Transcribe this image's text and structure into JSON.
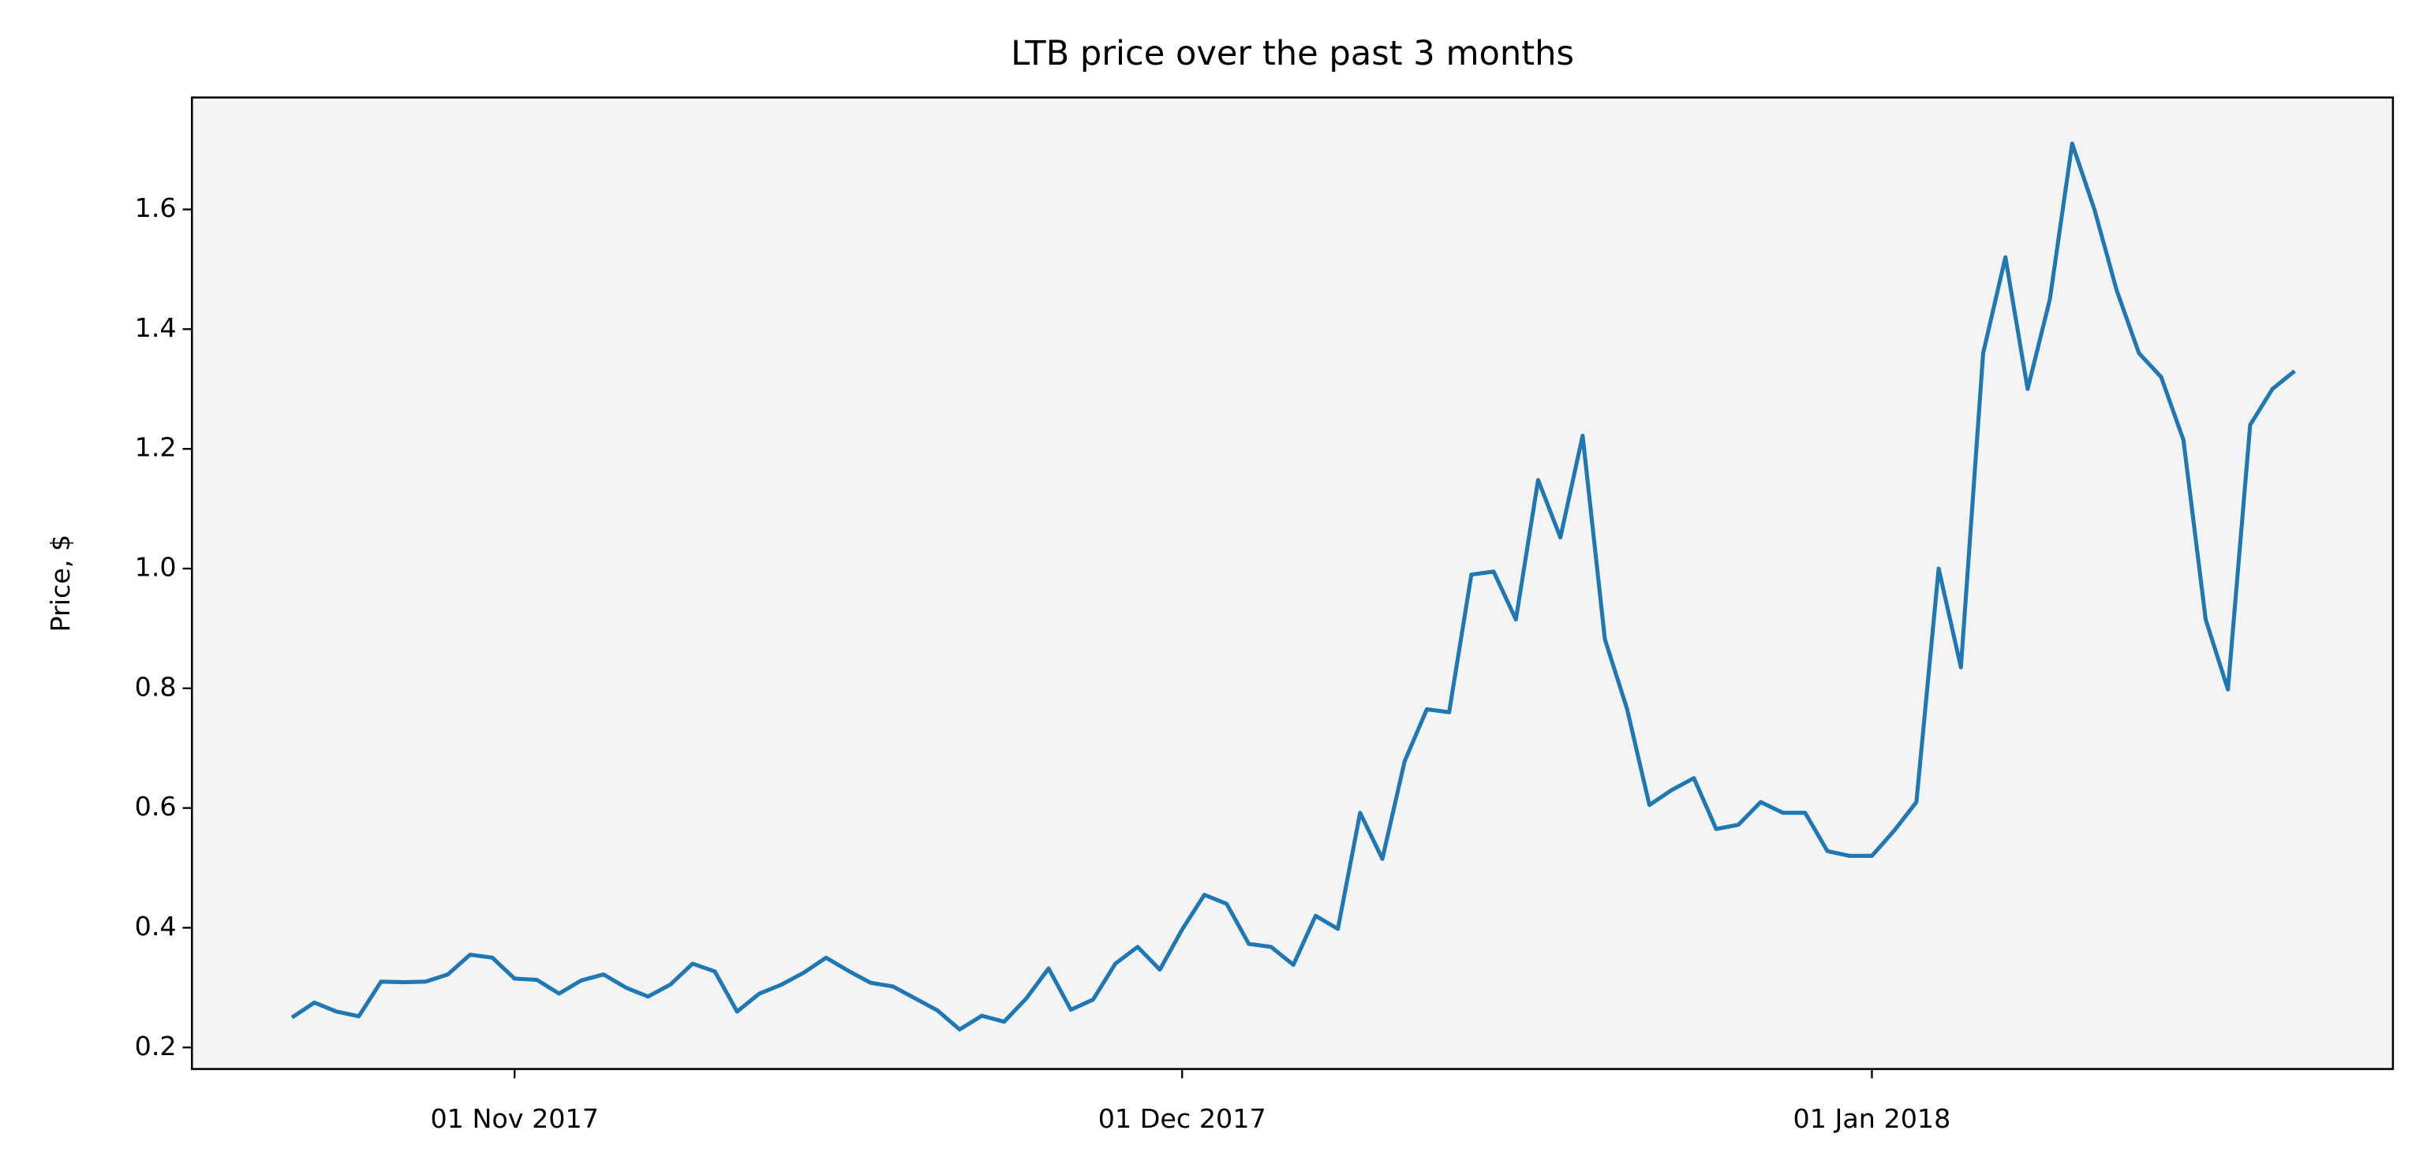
{
  "chart_data": {
    "type": "line",
    "title": "LTB price over the past 3 months",
    "y_label": "Price, $",
    "x": [
      "2017-10-22",
      "2017-10-23",
      "2017-10-24",
      "2017-10-25",
      "2017-10-26",
      "2017-10-27",
      "2017-10-28",
      "2017-10-29",
      "2017-10-30",
      "2017-10-31",
      "2017-11-01",
      "2017-11-02",
      "2017-11-03",
      "2017-11-04",
      "2017-11-05",
      "2017-11-06",
      "2017-11-07",
      "2017-11-08",
      "2017-11-09",
      "2017-11-10",
      "2017-11-11",
      "2017-11-12",
      "2017-11-13",
      "2017-11-14",
      "2017-11-15",
      "2017-11-16",
      "2017-11-17",
      "2017-11-18",
      "2017-11-19",
      "2017-11-20",
      "2017-11-21",
      "2017-11-22",
      "2017-11-23",
      "2017-11-24",
      "2017-11-25",
      "2017-11-26",
      "2017-11-27",
      "2017-11-28",
      "2017-11-29",
      "2017-11-30",
      "2017-12-01",
      "2017-12-02",
      "2017-12-03",
      "2017-12-04",
      "2017-12-05",
      "2017-12-06",
      "2017-12-07",
      "2017-12-08",
      "2017-12-09",
      "2017-12-10",
      "2017-12-11",
      "2017-12-12",
      "2017-12-13",
      "2017-12-14",
      "2017-12-15",
      "2017-12-16",
      "2017-12-17",
      "2017-12-18",
      "2017-12-19",
      "2017-12-20",
      "2017-12-21",
      "2017-12-22",
      "2017-12-23",
      "2017-12-24",
      "2017-12-25",
      "2017-12-26",
      "2017-12-27",
      "2017-12-28",
      "2017-12-29",
      "2017-12-30",
      "2017-12-31",
      "2018-01-01",
      "2018-01-02",
      "2018-01-03",
      "2018-01-04",
      "2018-01-05",
      "2018-01-06",
      "2018-01-07",
      "2018-01-08",
      "2018-01-09",
      "2018-01-10",
      "2018-01-11",
      "2018-01-12",
      "2018-01-13",
      "2018-01-14",
      "2018-01-15",
      "2018-01-16",
      "2018-01-17",
      "2018-01-18",
      "2018-01-19",
      "2018-01-20"
    ],
    "series": [
      {
        "name": "LTB",
        "color": "#1f77b4",
        "values": [
          0.25,
          0.275,
          0.26,
          0.252,
          0.31,
          0.309,
          0.31,
          0.322,
          0.355,
          0.35,
          0.315,
          0.313,
          0.29,
          0.312,
          0.322,
          0.3,
          0.285,
          0.305,
          0.34,
          0.327,
          0.26,
          0.29,
          0.305,
          0.325,
          0.35,
          0.328,
          0.308,
          0.302,
          0.282,
          0.262,
          0.23,
          0.253,
          0.243,
          0.282,
          0.332,
          0.263,
          0.28,
          0.34,
          0.368,
          0.33,
          0.397,
          0.455,
          0.44,
          0.373,
          0.368,
          0.338,
          0.42,
          0.398,
          0.592,
          0.515,
          0.678,
          0.765,
          0.76,
          0.99,
          0.995,
          0.915,
          1.148,
          1.052,
          1.222,
          0.882,
          0.765,
          0.605,
          0.63,
          0.65,
          0.565,
          0.572,
          0.61,
          0.592,
          0.592,
          0.528,
          0.52,
          0.52,
          0.562,
          0.61,
          1.0,
          0.835,
          1.36,
          1.52,
          1.3,
          1.45,
          1.71,
          1.6,
          1.465,
          1.36,
          1.32,
          1.215,
          0.915,
          0.798,
          1.24,
          1.3,
          1.33
        ]
      }
    ],
    "xlim": [
      "2017-10-17T12:00:00Z",
      "2018-01-24T10:00:00Z"
    ],
    "xticks": [
      {
        "value": "2017-11-01",
        "label": "01 Nov 2017"
      },
      {
        "value": "2017-12-01",
        "label": "01 Dec 2017"
      },
      {
        "value": "2018-01-01",
        "label": "01 Jan 2018"
      }
    ],
    "ylim": [
      0.164,
      1.787
    ],
    "yticks": [
      {
        "value": 0.2,
        "label": "0.2"
      },
      {
        "value": 0.4,
        "label": "0.4"
      },
      {
        "value": 0.6,
        "label": "0.6"
      },
      {
        "value": 0.8,
        "label": "0.8"
      },
      {
        "value": 1.0,
        "label": "1.0"
      },
      {
        "value": 1.2,
        "label": "1.2"
      },
      {
        "value": 1.4,
        "label": "1.4"
      },
      {
        "value": 1.6,
        "label": "1.6"
      }
    ],
    "grid": false,
    "background": "#f4f4f4"
  }
}
